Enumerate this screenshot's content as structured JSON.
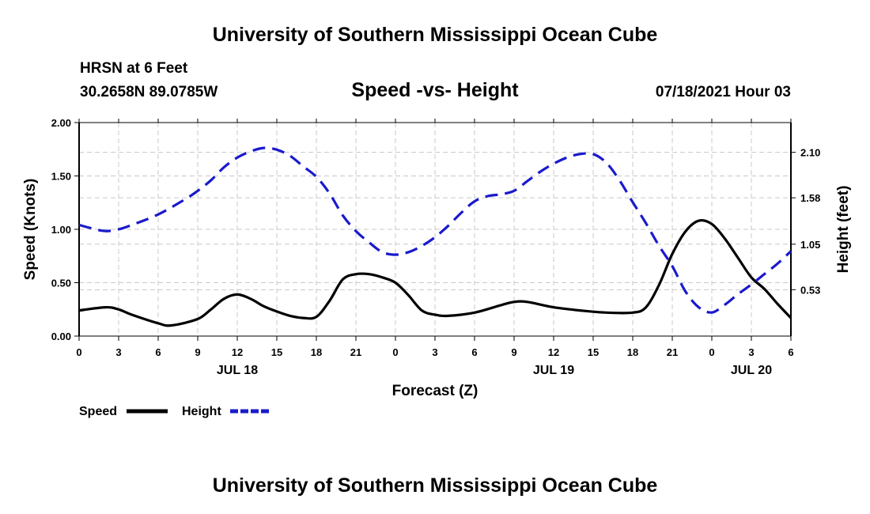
{
  "page": {
    "title_top": "University of Southern Mississippi Ocean Cube",
    "title_bottom": "University of Southern Mississippi Ocean Cube",
    "station": "HRSN at 6 Feet",
    "coords": "30.2658N  89.0785W",
    "subtitle": "Speed -vs- Height",
    "datetime": "07/18/2021 Hour 03"
  },
  "chart_data": {
    "type": "line",
    "title": "Speed -vs- Height",
    "xlabel": "Forecast (Z)",
    "ylabel": "Speed (Knots)",
    "y2label": "Height (feet)",
    "x_unit": "hours since 07/18 00Z",
    "xlim": [
      0,
      54
    ],
    "ylim": [
      0,
      2.0
    ],
    "y2lim": [
      0.0,
      2.44
    ],
    "grid": true,
    "xticks": [
      0,
      3,
      6,
      9,
      12,
      15,
      18,
      21,
      24,
      27,
      30,
      33,
      36,
      39,
      42,
      45,
      48,
      51,
      54
    ],
    "xtick_labels": [
      "0",
      "3",
      "6",
      "9",
      "12",
      "15",
      "18",
      "21",
      "0",
      "3",
      "6",
      "9",
      "12",
      "15",
      "18",
      "21",
      "0",
      "3",
      "6"
    ],
    "date_labels": [
      {
        "x": 12,
        "label": "JUL 18"
      },
      {
        "x": 36,
        "label": "JUL 19"
      },
      {
        "x": 51,
        "label": "JUL 20"
      }
    ],
    "yticks": [
      0.0,
      0.5,
      1.0,
      1.5,
      2.0
    ],
    "ytick_labels": [
      "0.00",
      "0.50",
      "1.00",
      "1.50",
      "2.00"
    ],
    "y2ticks": [
      0.53,
      1.05,
      1.58,
      2.1
    ],
    "y2tick_labels": [
      "0.53",
      "1.05",
      "1.58",
      "2.10"
    ],
    "legend": [
      {
        "name": "Speed",
        "color": "#000000",
        "dash": "solid"
      },
      {
        "name": "Height",
        "color": "#1a1acc",
        "dash": "dashed"
      }
    ],
    "series": [
      {
        "name": "Speed",
        "axis": "left",
        "color": "#000000",
        "x": [
          0,
          2,
          3,
          4,
          6,
          7,
          9,
          10,
          11,
          12,
          13,
          14,
          15,
          16,
          17,
          18,
          19,
          20,
          21,
          22,
          23,
          24,
          25,
          26,
          27,
          28,
          30,
          32,
          33,
          34,
          36,
          38,
          40,
          42,
          43,
          44,
          45,
          46,
          47,
          48,
          49,
          50,
          51,
          52,
          53,
          54
        ],
        "values": [
          0.24,
          0.27,
          0.25,
          0.2,
          0.12,
          0.1,
          0.16,
          0.25,
          0.35,
          0.39,
          0.35,
          0.28,
          0.23,
          0.19,
          0.17,
          0.18,
          0.33,
          0.53,
          0.58,
          0.58,
          0.55,
          0.5,
          0.38,
          0.24,
          0.2,
          0.19,
          0.22,
          0.29,
          0.32,
          0.32,
          0.27,
          0.24,
          0.22,
          0.22,
          0.27,
          0.48,
          0.77,
          0.98,
          1.08,
          1.05,
          0.91,
          0.73,
          0.55,
          0.44,
          0.3,
          0.17
        ]
      },
      {
        "name": "Height",
        "axis": "right",
        "color": "#1a1acc",
        "x": [
          0,
          1,
          2,
          3,
          4,
          6,
          8,
          9,
          10,
          11,
          12,
          13,
          14,
          15,
          16,
          17,
          18,
          19,
          20,
          21,
          22,
          23,
          24,
          25,
          26,
          27,
          28,
          29,
          30,
          31,
          32,
          33,
          34,
          35,
          36,
          37,
          38,
          39,
          40,
          41,
          42,
          43,
          44,
          45,
          46,
          47,
          48,
          49,
          50,
          51,
          52,
          53,
          54
        ],
        "values": [
          1.27,
          1.23,
          1.2,
          1.22,
          1.27,
          1.39,
          1.56,
          1.66,
          1.78,
          1.93,
          2.04,
          2.11,
          2.15,
          2.13,
          2.06,
          1.94,
          1.82,
          1.63,
          1.38,
          1.2,
          1.07,
          0.96,
          0.93,
          0.96,
          1.03,
          1.13,
          1.26,
          1.41,
          1.54,
          1.6,
          1.62,
          1.66,
          1.77,
          1.88,
          1.97,
          2.04,
          2.08,
          2.08,
          1.98,
          1.78,
          1.53,
          1.29,
          1.03,
          0.8,
          0.51,
          0.33,
          0.27,
          0.36,
          0.48,
          0.59,
          0.71,
          0.83,
          0.97
        ]
      }
    ]
  }
}
